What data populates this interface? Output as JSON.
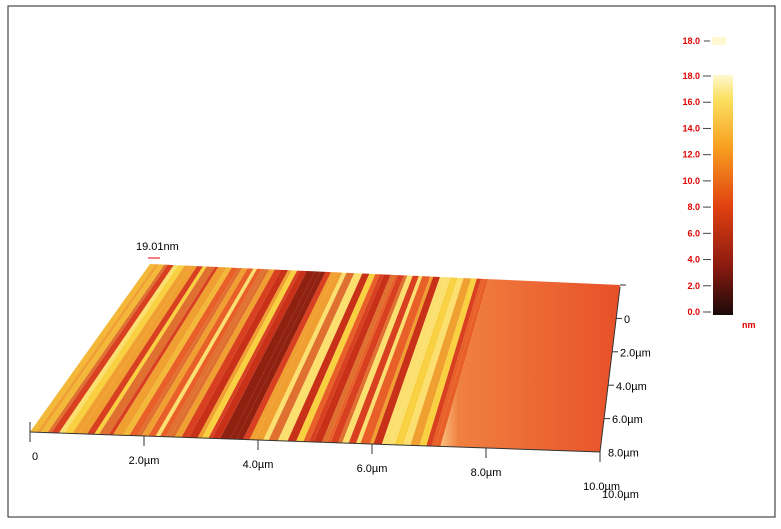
{
  "z_scale_label": "19.01nm",
  "x_axis": {
    "labels": [
      "0",
      "2.0µm",
      "4.0µm",
      "6.0µm",
      "8.0µm",
      "10.0µm"
    ]
  },
  "y_axis": {
    "labels": [
      "0",
      "2.0µm",
      "4.0µm",
      "6.0µm",
      "8.0µm",
      "10.0µm"
    ]
  },
  "colorbar": {
    "top_label": "18.0",
    "labels": [
      "18.0",
      "16.0",
      "14.0",
      "12.0",
      "10.0",
      "8.0",
      "6.0",
      "4.0",
      "2.0",
      "0.0"
    ],
    "unit": "nm"
  }
}
